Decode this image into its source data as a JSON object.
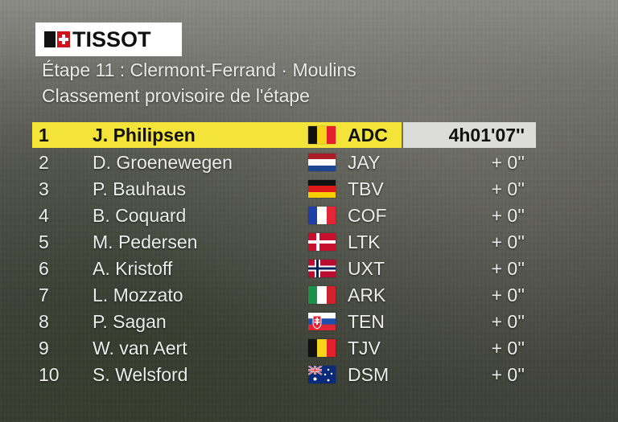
{
  "brand": {
    "name": "TISSOT"
  },
  "header": {
    "stage": "Étape 11 : Clermont-Ferrand · Moulins",
    "subtitle": "Classement provisoire de l'étape"
  },
  "standings": [
    {
      "rank": "1",
      "name": "J. Philipsen",
      "flag": "belgium-flag",
      "team": "ADC",
      "time": "4h01'07''"
    },
    {
      "rank": "2",
      "name": "D. Groenewegen",
      "flag": "netherlands-flag",
      "team": "JAY",
      "time": "+ 0''"
    },
    {
      "rank": "3",
      "name": "P. Bauhaus",
      "flag": "germany-flag",
      "team": "TBV",
      "time": "+ 0''"
    },
    {
      "rank": "4",
      "name": "B. Coquard",
      "flag": "france-flag",
      "team": "COF",
      "time": "+ 0''"
    },
    {
      "rank": "5",
      "name": "M. Pedersen",
      "flag": "denmark-flag",
      "team": "LTK",
      "time": "+ 0''"
    },
    {
      "rank": "6",
      "name": "A. Kristoff",
      "flag": "norway-flag",
      "team": "UXT",
      "time": "+ 0''"
    },
    {
      "rank": "7",
      "name": "L. Mozzato",
      "flag": "italy-flag",
      "team": "ARK",
      "time": "+ 0''"
    },
    {
      "rank": "8",
      "name": "P. Sagan",
      "flag": "slovakia-flag",
      "team": "TEN",
      "time": "+ 0''"
    },
    {
      "rank": "9",
      "name": "W. van Aert",
      "flag": "belgium-flag",
      "team": "TJV",
      "time": "+ 0''"
    },
    {
      "rank": "10",
      "name": "S. Welsford",
      "flag": "australia-flag",
      "team": "DSM",
      "time": "+ 0''"
    }
  ],
  "colors": {
    "leader_highlight": "#f4e43a",
    "leader_time_bg": "#dcdcd8",
    "text": "#ececec",
    "brand_red": "#d0121b"
  }
}
